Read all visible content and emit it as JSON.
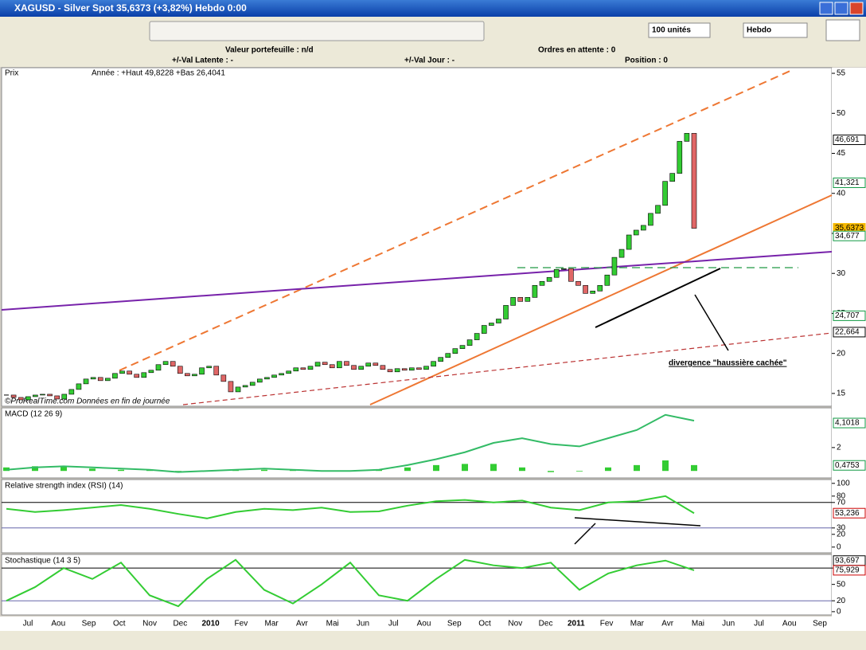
{
  "window": {
    "title": "XAGUSD - Silver Spot    35,6373 (+3,82%)    Hebdo  0:00",
    "units": "100 unités",
    "period": "Hebdo"
  },
  "info": {
    "portfolio": "Valeur portefeuille : n/d",
    "orders": "Ordres en attente : 0",
    "latent": "+/-Val Latente : -",
    "day": "+/-Val Jour : -",
    "position": "Position : 0"
  },
  "chart_data": [
    {
      "type": "candlestick",
      "title": "Prix",
      "subtitle": "Année : +Haut 49,8228 +Bas 26,4041",
      "annotation": "divergence \"haussière cachée\"",
      "source": "©ProRealTime.com Données en fin de journée",
      "categories": [
        "Jul",
        "Aou",
        "Sep",
        "Oct",
        "Nov",
        "Dec",
        "2010",
        "Fev",
        "Mar",
        "Avr",
        "Mai",
        "Jun",
        "Jul",
        "Aou",
        "Sep",
        "Oct",
        "Nov",
        "Dec",
        "2011",
        "Fev",
        "Mar",
        "Avr",
        "Mai",
        "Jun",
        "Jul",
        "Aou",
        "Sep"
      ],
      "closes": [
        14.8,
        14.5,
        14.2,
        14.6,
        14.8,
        14.9,
        14.7,
        14.3,
        14.9,
        15.5,
        16.2,
        16.8,
        17.0,
        16.6,
        16.9,
        17.5,
        17.8,
        17.4,
        17.0,
        17.6,
        17.9,
        18.6,
        19.0,
        18.4,
        17.5,
        17.2,
        17.4,
        18.2,
        18.4,
        17.3,
        16.5,
        15.2,
        15.8,
        16.0,
        16.4,
        16.8,
        17.0,
        17.3,
        17.5,
        17.8,
        18.2,
        18.0,
        18.4,
        18.9,
        18.6,
        18.2,
        19.0,
        18.5,
        18.0,
        18.4,
        18.8,
        18.5,
        18.0,
        17.7,
        18.1,
        17.9,
        18.2,
        18.0,
        18.4,
        19.0,
        19.5,
        20.0,
        20.6,
        21.0,
        21.7,
        22.5,
        23.5,
        23.8,
        24.3,
        26.0,
        27.0,
        26.5,
        27.0,
        28.5,
        29.0,
        29.5,
        30.5,
        30.6,
        29.0,
        28.5,
        27.5,
        27.8,
        28.5,
        29.8,
        32.0,
        33.0,
        34.8,
        35.4,
        36.0,
        37.5,
        38.5,
        41.5,
        42.5,
        46.5,
        47.5,
        35.6373
      ],
      "up_color": "#33cc33",
      "down_color": "#e06666",
      "ylim": [
        13.4,
        55.6
      ],
      "yticks": [
        15,
        20,
        25,
        30,
        35,
        40,
        45,
        50,
        55
      ],
      "price_labels": [
        {
          "value": 46.691,
          "label": "46,691",
          "color": "#000000"
        },
        {
          "value": 41.321,
          "label": "41,321",
          "color": "#119944"
        },
        {
          "value": 35.6373,
          "label": "35,6373",
          "color": "#f5b800"
        },
        {
          "value": 34.677,
          "label": "34,677",
          "color": "#119944"
        },
        {
          "value": 24.707,
          "label": "24,707",
          "color": "#119944"
        },
        {
          "value": 22.664,
          "label": "22,664",
          "color": "#000000"
        }
      ]
    },
    {
      "type": "macd",
      "title": "MACD (12 26 9)",
      "color": "#33bb66",
      "bar_color": "#33cc33",
      "values": [
        0.1,
        0.3,
        0.4,
        0.3,
        0.2,
        0.1,
        -0.1,
        0.0,
        0.1,
        0.2,
        0.1,
        0.0,
        0.0,
        0.1,
        0.5,
        1.0,
        1.6,
        2.4,
        2.8,
        2.3,
        2.1,
        2.8,
        3.5,
        4.8,
        4.3
      ],
      "histogram": [
        0.3,
        0.4,
        0.35,
        0.2,
        0.1,
        0.05,
        -0.1,
        -0.05,
        0.05,
        0.1,
        0.05,
        0,
        0,
        0.1,
        0.3,
        0.5,
        0.6,
        0.6,
        0.3,
        -0.1,
        -0.05,
        0.3,
        0.5,
        0.9,
        0.5
      ],
      "ylim": [
        -0.6,
        5.4
      ],
      "yticks": [
        2
      ],
      "price_labels": [
        {
          "value": 4.1018,
          "label": "4,1018",
          "color": "#119944"
        },
        {
          "value": 0.4753,
          "label": "0,4753",
          "color": "#119944"
        }
      ]
    },
    {
      "type": "line",
      "title": "Relative strength index (RSI) (14)",
      "color": "#33cc33",
      "values": [
        60,
        55,
        58,
        62,
        66,
        60,
        52,
        45,
        55,
        60,
        58,
        62,
        55,
        56,
        65,
        72,
        74,
        70,
        73,
        62,
        58,
        70,
        72,
        80,
        53.236
      ],
      "ylim": [
        -9,
        106
      ],
      "yticks": [
        0,
        20,
        30,
        70,
        80,
        100
      ],
      "levels": [
        30,
        70
      ],
      "price_labels": [
        {
          "value": 53.236,
          "label": "53,236",
          "color": "#cc0000"
        }
      ]
    },
    {
      "type": "line",
      "title": "Stochastique (14 3 5)",
      "color": "#33cc33",
      "values": [
        20,
        45,
        80,
        60,
        90,
        30,
        10,
        60,
        95,
        40,
        15,
        50,
        90,
        30,
        20,
        60,
        95,
        85,
        80,
        90,
        40,
        70,
        85,
        93.697,
        75.929
      ],
      "ylim": [
        -6,
        105
      ],
      "yticks": [
        0,
        20,
        50,
        80
      ],
      "levels": [
        20,
        80
      ],
      "price_labels": [
        {
          "value": 93.697,
          "label": "93,697",
          "color": "#000000"
        },
        {
          "value": 75.929,
          "label": "75,929",
          "color": "#cc0000"
        }
      ]
    }
  ]
}
